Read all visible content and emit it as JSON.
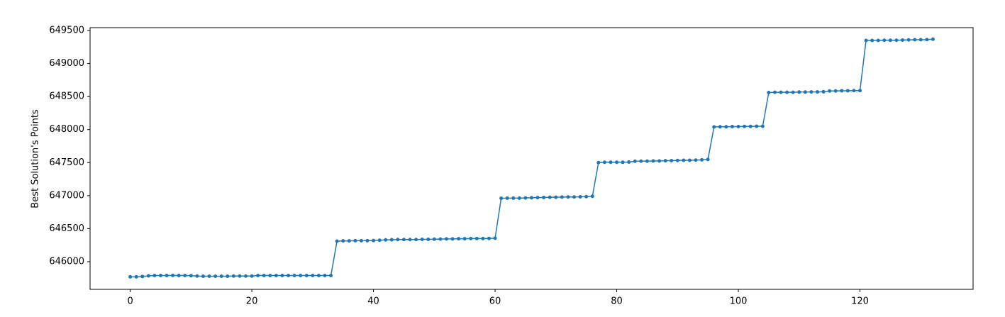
{
  "chart_data": {
    "type": "line",
    "ylabel": "Best Solution's Points",
    "x": [
      0,
      1,
      2,
      3,
      4,
      5,
      6,
      7,
      8,
      9,
      10,
      11,
      12,
      13,
      14,
      15,
      16,
      17,
      18,
      19,
      20,
      21,
      22,
      23,
      24,
      25,
      26,
      27,
      28,
      29,
      30,
      31,
      32,
      33,
      34,
      35,
      36,
      37,
      38,
      39,
      40,
      41,
      42,
      43,
      44,
      45,
      46,
      47,
      48,
      49,
      50,
      51,
      52,
      53,
      54,
      55,
      56,
      57,
      58,
      59,
      60,
      61,
      62,
      63,
      64,
      65,
      66,
      67,
      68,
      69,
      70,
      71,
      72,
      73,
      74,
      75,
      76,
      77,
      78,
      79,
      80,
      81,
      82,
      83,
      84,
      85,
      86,
      87,
      88,
      89,
      90,
      91,
      92,
      93,
      94,
      95,
      96,
      97,
      98,
      99,
      100,
      101,
      102,
      103,
      104,
      105,
      106,
      107,
      108,
      109,
      110,
      111,
      112,
      113,
      114,
      115,
      116,
      117,
      118,
      119,
      120,
      121,
      122,
      123,
      124,
      125,
      126,
      127,
      128,
      129,
      130,
      131,
      132
    ],
    "series": [
      {
        "color": "#1f77b4",
        "values": [
          645770,
          645770,
          645775,
          645785,
          645790,
          645790,
          645790,
          645792,
          645790,
          645790,
          645788,
          645782,
          645780,
          645780,
          645780,
          645780,
          645780,
          645782,
          645782,
          645782,
          645782,
          645790,
          645790,
          645790,
          645790,
          645790,
          645790,
          645790,
          645790,
          645790,
          645790,
          645790,
          645790,
          645790,
          646310,
          646315,
          646315,
          646318,
          646318,
          646318,
          646320,
          646325,
          646330,
          646332,
          646335,
          646335,
          646335,
          646335,
          646338,
          646338,
          646340,
          646342,
          646345,
          646345,
          646348,
          646348,
          646350,
          646350,
          646350,
          646352,
          646355,
          646960,
          646962,
          646962,
          646962,
          646965,
          646968,
          646970,
          646972,
          646975,
          646975,
          646978,
          646980,
          646980,
          646982,
          646985,
          646990,
          647500,
          647505,
          647505,
          647505,
          647505,
          647508,
          647520,
          647522,
          647522,
          647525,
          647525,
          647528,
          647530,
          647532,
          647535,
          647535,
          647538,
          647542,
          647548,
          648040,
          648042,
          648042,
          648045,
          648045,
          648048,
          648048,
          648050,
          648050,
          648560,
          648565,
          648565,
          648565,
          648565,
          648568,
          648568,
          648570,
          648570,
          648572,
          648585,
          648585,
          648588,
          648588,
          648590,
          648590,
          649350,
          649350,
          649350,
          649352,
          649352,
          649352,
          649355,
          649358,
          649360,
          649360,
          649362,
          649368
        ]
      }
    ],
    "xlim": [
      -6.6,
      138.6
    ],
    "xticks": [
      0,
      20,
      40,
      60,
      80,
      100,
      120
    ],
    "ylim": [
      645581,
      649543
    ],
    "yticks": [
      646000,
      646500,
      647000,
      647500,
      648000,
      648500,
      649000,
      649500
    ]
  }
}
